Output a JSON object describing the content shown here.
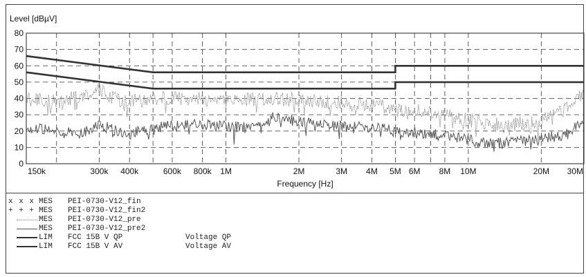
{
  "chart_data": {
    "type": "line",
    "ylabel": "Level [dBµV]",
    "xlabel": "Frequency [Hz]",
    "x_scale": "log",
    "xlim": [
      150000,
      30000000
    ],
    "ylim": [
      0,
      80
    ],
    "grid": true,
    "y_ticks": [
      "0",
      "10",
      "20",
      "30",
      "40",
      "50",
      "60",
      "70",
      "80"
    ],
    "x_ticks": [
      {
        "label": "150k",
        "value": 150000
      },
      {
        "label": "300k",
        "value": 300000
      },
      {
        "label": "400k",
        "value": 400000
      },
      {
        "label": "600k",
        "value": 600000
      },
      {
        "label": "800k",
        "value": 800000
      },
      {
        "label": "1M",
        "value": 1000000
      },
      {
        "label": "2M",
        "value": 2000000
      },
      {
        "label": "3M",
        "value": 3000000
      },
      {
        "label": "4M",
        "value": 4000000
      },
      {
        "label": "5M",
        "value": 5000000
      },
      {
        "label": "6M",
        "value": 6000000
      },
      {
        "label": "8M",
        "value": 8000000
      },
      {
        "label": "10M",
        "value": 10000000
      },
      {
        "label": "20M",
        "value": 20000000
      },
      {
        "label": "30M",
        "value": 30000000
      }
    ],
    "minor_grid_x": [
      200000,
      500000,
      7000000
    ],
    "series": [
      {
        "name": "FCC 15B V QP",
        "style": "limit",
        "color": "#333333",
        "x": [
          150000,
          500000,
          4999000,
          5000000,
          30000000
        ],
        "y": [
          66,
          56,
          56,
          60,
          60
        ]
      },
      {
        "name": "FCC 15B V AV",
        "style": "limit",
        "color": "#333333",
        "x": [
          150000,
          500000,
          4999000,
          5000000,
          30000000
        ],
        "y": [
          56,
          46,
          46,
          50,
          50
        ]
      },
      {
        "name": "PEI-0730-V12_pre",
        "style": "noisy",
        "color": "#8a8a8a",
        "x": [
          150000,
          200000,
          250000,
          300000,
          350000,
          400000,
          500000,
          700000,
          1000000,
          1500000,
          2000000,
          3000000,
          4000000,
          5000000,
          7000000,
          10000000,
          12000000,
          15000000,
          20000000,
          25000000,
          30000000
        ],
        "y": [
          40,
          38,
          41,
          45,
          40,
          38,
          40,
          40,
          39,
          40,
          39,
          37,
          36,
          34,
          31,
          27,
          25,
          24,
          26,
          33,
          43
        ]
      },
      {
        "name": "PEI-0730-V12_pre2",
        "style": "noisy",
        "color": "#555555",
        "x": [
          150000,
          200000,
          250000,
          300000,
          350000,
          400000,
          500000,
          700000,
          1000000,
          1300000,
          1600000,
          2000000,
          3000000,
          4000000,
          5000000,
          7000000,
          10000000,
          12000000,
          15000000,
          20000000,
          25000000,
          30000000
        ],
        "y": [
          22,
          20,
          18,
          24,
          20,
          18,
          22,
          24,
          23,
          22,
          29,
          26,
          23,
          22,
          20,
          18,
          15,
          12,
          13,
          15,
          18,
          25
        ]
      }
    ]
  },
  "legend": [
    {
      "symbol": "x x x",
      "line": "",
      "type": "MES",
      "name": "PEI-0730-V12_fin",
      "desc": ""
    },
    {
      "symbol": "+ + +",
      "line": "",
      "type": "MES",
      "name": "PEI-0730-V12_fin2",
      "desc": ""
    },
    {
      "symbol": "",
      "line": "dotted",
      "type": "MES",
      "name": "PEI-0730-V12_pre",
      "desc": ""
    },
    {
      "symbol": "",
      "line": "thin",
      "type": "MES",
      "name": "PEI-0730-V12_pre2",
      "desc": ""
    },
    {
      "symbol": "",
      "line": "thick",
      "type": "LIM",
      "name": "FCC 15B V QP",
      "desc": "Voltage QP"
    },
    {
      "symbol": "",
      "line": "thick",
      "type": "LIM",
      "name": "FCC 15B V AV",
      "desc": "Voltage AV"
    }
  ]
}
